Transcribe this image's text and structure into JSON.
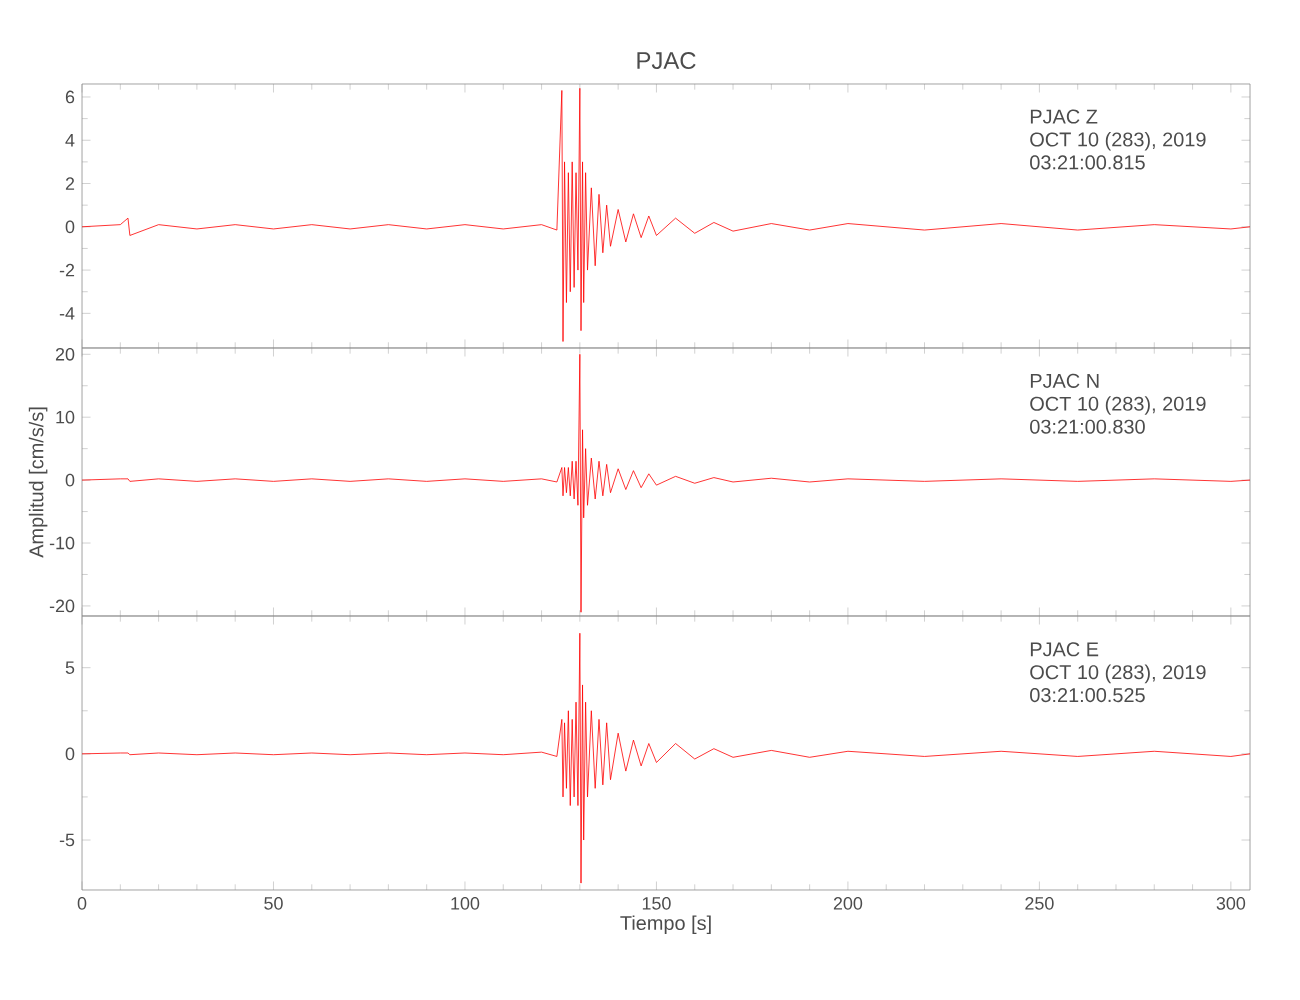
{
  "chart_data": [
    {
      "type": "line",
      "title": "PJAC",
      "annotations": [
        "PJAC Z",
        "OCT 10 (283), 2019",
        "03:21:00.815"
      ],
      "xlim": [
        0,
        305
      ],
      "xticks": [
        0,
        50,
        100,
        150,
        200,
        250,
        300
      ],
      "ylim": [
        -5.6,
        6.6
      ],
      "yticks": [
        -4,
        -2,
        0,
        2,
        4,
        6
      ],
      "tick_labels": "y",
      "grid": false,
      "x": [
        0,
        10,
        12,
        12.5,
        20,
        30,
        40,
        50,
        60,
        70,
        80,
        90,
        100,
        110,
        120,
        124,
        125.3,
        125.6,
        126,
        126.5,
        127,
        127.5,
        128,
        128.5,
        129,
        129.5,
        130,
        130.3,
        130.7,
        131,
        131.5,
        132,
        133,
        134,
        135,
        136,
        137,
        138,
        140,
        142,
        144,
        146,
        148,
        150,
        155,
        160,
        165,
        170,
        180,
        190,
        200,
        220,
        240,
        260,
        280,
        300,
        305
      ],
      "series": [
        {
          "color": "#ff0000",
          "values": [
            0,
            0.1,
            0.4,
            -0.4,
            0.1,
            -0.1,
            0.1,
            -0.1,
            0.1,
            -0.1,
            0.1,
            -0.1,
            0.1,
            -0.1,
            0.1,
            -0.15,
            6.3,
            -5.3,
            3,
            -3.5,
            2.5,
            -3,
            3,
            -2.8,
            2.5,
            -2,
            6.4,
            -4.8,
            3,
            -3.5,
            2.5,
            -2,
            1.8,
            -1.8,
            1.5,
            -1.2,
            1,
            -0.9,
            0.8,
            -0.7,
            0.6,
            -0.5,
            0.5,
            -0.4,
            0.4,
            -0.3,
            0.2,
            -0.2,
            0.15,
            -0.15,
            0.15,
            -0.15,
            0.15,
            -0.15,
            0.1,
            -0.1,
            0
          ]
        }
      ]
    },
    {
      "type": "line",
      "ylabel": "Amplitud [cm/s/s]",
      "annotations": [
        "PJAC N",
        "OCT 10 (283), 2019",
        "03:21:00.830"
      ],
      "xlim": [
        0,
        305
      ],
      "xticks": [
        0,
        50,
        100,
        150,
        200,
        250,
        300
      ],
      "ylim": [
        -21.6,
        21
      ],
      "yticks": [
        -20,
        -10,
        0,
        10,
        20
      ],
      "tick_labels": "y",
      "grid": false,
      "x": [
        0,
        10,
        12,
        12.5,
        20,
        30,
        40,
        50,
        60,
        70,
        80,
        90,
        100,
        110,
        120,
        124,
        125.3,
        125.6,
        126,
        126.5,
        127,
        127.5,
        128,
        128.5,
        129,
        129.5,
        130,
        130.3,
        130.7,
        131,
        131.5,
        132,
        133,
        134,
        135,
        136,
        137,
        138,
        140,
        142,
        144,
        146,
        148,
        150,
        155,
        160,
        165,
        170,
        180,
        190,
        200,
        220,
        240,
        260,
        280,
        300,
        305
      ],
      "series": [
        {
          "color": "#ff0000",
          "values": [
            0,
            0.2,
            0.2,
            -0.2,
            0.2,
            -0.2,
            0.2,
            -0.2,
            0.2,
            -0.2,
            0.2,
            -0.2,
            0.2,
            -0.2,
            0.2,
            -0.3,
            2,
            -2.5,
            2,
            -2,
            2,
            -2.5,
            3,
            -3,
            3,
            -4,
            20,
            -21,
            8,
            -6,
            5,
            -4,
            3.5,
            -3,
            3,
            -2.5,
            2.5,
            -2,
            1.8,
            -1.5,
            1.5,
            -1.2,
            1,
            -0.8,
            0.6,
            -0.5,
            0.4,
            -0.3,
            0.3,
            -0.3,
            0.2,
            -0.2,
            0.2,
            -0.2,
            0.2,
            -0.2,
            0
          ]
        }
      ]
    },
    {
      "type": "line",
      "xlabel": "Tiempo [s]",
      "annotations": [
        "PJAC E",
        "OCT 10 (283), 2019",
        "03:21:00.525"
      ],
      "xlim": [
        0,
        305
      ],
      "xticks": [
        0,
        50,
        100,
        150,
        200,
        250,
        300
      ],
      "ylim": [
        -7.9,
        8
      ],
      "yticks": [
        -5,
        0,
        5
      ],
      "grid": false,
      "x": [
        0,
        10,
        12,
        12.5,
        20,
        30,
        40,
        50,
        60,
        70,
        80,
        90,
        100,
        110,
        120,
        124,
        125.3,
        125.6,
        126,
        126.5,
        127,
        127.5,
        128,
        128.5,
        129,
        129.5,
        130,
        130.3,
        130.7,
        131,
        131.5,
        132,
        133,
        134,
        135,
        136,
        137,
        138,
        140,
        142,
        144,
        146,
        148,
        150,
        155,
        160,
        165,
        170,
        180,
        190,
        200,
        220,
        240,
        260,
        280,
        300,
        305
      ],
      "series": [
        {
          "color": "#ff0000",
          "values": [
            0,
            0.05,
            0.05,
            -0.05,
            0.05,
            -0.05,
            0.05,
            -0.05,
            0.05,
            -0.05,
            0.05,
            -0.05,
            0.05,
            -0.05,
            0.1,
            -0.15,
            2,
            -2.5,
            1.8,
            -2,
            2.5,
            -3,
            2,
            -2.5,
            3,
            -3,
            7,
            -7.5,
            4,
            -5,
            3,
            -2.5,
            2.5,
            -2,
            2,
            -1.8,
            1.8,
            -1.5,
            1.2,
            -1,
            0.8,
            -0.7,
            0.6,
            -0.5,
            0.6,
            -0.3,
            0.3,
            -0.2,
            0.2,
            -0.2,
            0.15,
            -0.15,
            0.15,
            -0.15,
            0.15,
            -0.15,
            0
          ]
        }
      ]
    }
  ]
}
